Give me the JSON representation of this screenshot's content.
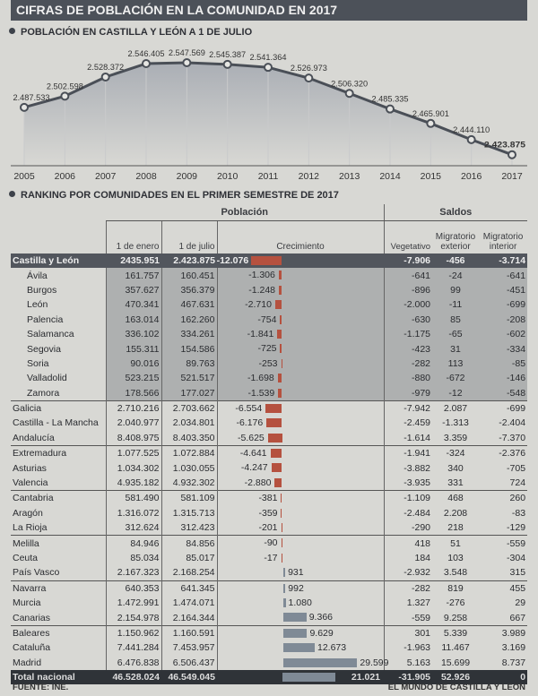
{
  "header": {
    "title": "CIFRAS DE POBLACIÓN EN LA COMUNIDAD EN 2017"
  },
  "section1": {
    "title": "POBLACIÓN EN CASTILLA Y LEÓN A 1 DE JULIO"
  },
  "chart_data": {
    "type": "line",
    "title": "POBLACIÓN EN CASTILLA Y LEÓN A 1 DE JULIO",
    "x": [
      "2005",
      "2006",
      "2007",
      "2008",
      "2009",
      "2010",
      "2011",
      "2012",
      "2013",
      "2014",
      "2015",
      "2016",
      "2017"
    ],
    "values": [
      2487533,
      2502598,
      2528372,
      2546405,
      2547569,
      2545387,
      2541364,
      2526973,
      2506320,
      2485335,
      2465901,
      2444110,
      2423875
    ],
    "labels": [
      "2.487.533",
      "2.502.598",
      "2.528.372",
      "2.546.405",
      "2.547.569",
      "2.545.387",
      "2.541.364",
      "2.526.973",
      "2.506.320",
      "2.485.335",
      "2.465.901",
      "2.444.110",
      "2.423.875"
    ],
    "ylim": [
      2400000,
      2560000
    ],
    "line_color": "#4a4f57",
    "fill_color": "#9fa4ad"
  },
  "section2": {
    "title": "RANKING POR COMUNIDADES EN EL PRIMER SEMESTRE DE 2017"
  },
  "table": {
    "group_poblacion": "Población",
    "group_saldos": "Saldos",
    "columns": [
      "1 de enero",
      "1 de julio",
      "Crecimiento",
      "Vegetativo",
      "Migratorio exterior",
      "Migratorio interior"
    ],
    "neg_color": "#b5513f",
    "pos_color": "#7f8a96",
    "rows": [
      {
        "name": "Castilla y León",
        "enero": "2435.951",
        "julio": "2.423.875",
        "crec": "-12.076",
        "v": -12076,
        "veg": "-7.906",
        "mext": "-456",
        "mint": "-3.714",
        "type": "cyl"
      },
      {
        "name": "Ávila",
        "enero": "161.757",
        "julio": "160.451",
        "crec": "-1.306",
        "v": -1306,
        "veg": "-641",
        "mext": "-24",
        "mint": "-641",
        "type": "prov"
      },
      {
        "name": "Burgos",
        "enero": "357.627",
        "julio": "356.379",
        "crec": "-1.248",
        "v": -1248,
        "veg": "-896",
        "mext": "99",
        "mint": "-451",
        "type": "prov"
      },
      {
        "name": "León",
        "enero": "470.341",
        "julio": "467.631",
        "crec": "-2.710",
        "v": -2710,
        "veg": "-2.000",
        "mext": "-11",
        "mint": "-699",
        "type": "prov"
      },
      {
        "name": "Palencia",
        "enero": "163.014",
        "julio": "162.260",
        "crec": "-754",
        "v": -754,
        "veg": "-630",
        "mext": "85",
        "mint": "-208",
        "type": "prov"
      },
      {
        "name": "Salamanca",
        "enero": "336.102",
        "julio": "334.261",
        "crec": "-1.841",
        "v": -1841,
        "veg": "-1.175",
        "mext": "-65",
        "mint": "-602",
        "type": "prov"
      },
      {
        "name": "Segovia",
        "enero": "155.311",
        "julio": "154.586",
        "crec": "-725",
        "v": -725,
        "veg": "-423",
        "mext": "31",
        "mint": "-334",
        "type": "prov"
      },
      {
        "name": "Soria",
        "enero": "90.016",
        "julio": "89.763",
        "crec": "-253",
        "v": -253,
        "veg": "-282",
        "mext": "113",
        "mint": "-85",
        "type": "prov"
      },
      {
        "name": "Valladolid",
        "enero": "523.215",
        "julio": "521.517",
        "crec": "-1.698",
        "v": -1698,
        "veg": "-880",
        "mext": "-672",
        "mint": "-146",
        "type": "prov"
      },
      {
        "name": "Zamora",
        "enero": "178.566",
        "julio": "177.027",
        "crec": "-1.539",
        "v": -1539,
        "veg": "-979",
        "mext": "-12",
        "mint": "-548",
        "type": "prov"
      },
      {
        "name": "Galicia",
        "enero": "2.710.216",
        "julio": "2.703.662",
        "crec": "-6.554",
        "v": -6554,
        "veg": "-7.942",
        "mext": "2.087",
        "mint": "-699",
        "type": "sep"
      },
      {
        "name": "Castilla - La Mancha",
        "enero": "2.040.977",
        "julio": "2.034.801",
        "crec": "-6.176",
        "v": -6176,
        "veg": "-2.459",
        "mext": "-1.313",
        "mint": "-2.404",
        "type": ""
      },
      {
        "name": "Andalucía",
        "enero": "8.408.975",
        "julio": "8.403.350",
        "crec": "-5.625",
        "v": -5625,
        "veg": "-1.614",
        "mext": "3.359",
        "mint": "-7.370",
        "type": ""
      },
      {
        "name": "Extremadura",
        "enero": "1.077.525",
        "julio": "1.072.884",
        "crec": "-4.641",
        "v": -4641,
        "veg": "-1.941",
        "mext": "-324",
        "mint": "-2.376",
        "type": "sep"
      },
      {
        "name": "Asturias",
        "enero": "1.034.302",
        "julio": "1.030.055",
        "crec": "-4.247",
        "v": -4247,
        "veg": "-3.882",
        "mext": "340",
        "mint": "-705",
        "type": ""
      },
      {
        "name": "Valencia",
        "enero": "4.935.182",
        "julio": "4.932.302",
        "crec": "-2.880",
        "v": -2880,
        "veg": "-3.935",
        "mext": "331",
        "mint": "724",
        "type": ""
      },
      {
        "name": "Cantabria",
        "enero": "581.490",
        "julio": "581.109",
        "crec": "-381",
        "v": -381,
        "veg": "-1.109",
        "mext": "468",
        "mint": "260",
        "type": "sep"
      },
      {
        "name": "Aragón",
        "enero": "1.316.072",
        "julio": "1.315.713",
        "crec": "-359",
        "v": -359,
        "veg": "-2.484",
        "mext": "2.208",
        "mint": "-83",
        "type": ""
      },
      {
        "name": "La Rioja",
        "enero": "312.624",
        "julio": "312.423",
        "crec": "-201",
        "v": -201,
        "veg": "-290",
        "mext": "218",
        "mint": "-129",
        "type": ""
      },
      {
        "name": "Melilla",
        "enero": "84.946",
        "julio": "84.856",
        "crec": "-90",
        "v": -90,
        "veg": "418",
        "mext": "51",
        "mint": "-559",
        "type": "sep"
      },
      {
        "name": "Ceuta",
        "enero": "85.034",
        "julio": "85.017",
        "crec": "-17",
        "v": -17,
        "veg": "184",
        "mext": "103",
        "mint": "-304",
        "type": ""
      },
      {
        "name": "País Vasco",
        "enero": "2.167.323",
        "julio": "2.168.254",
        "crec": "931",
        "v": 931,
        "veg": "-2.932",
        "mext": "3.548",
        "mint": "315",
        "type": ""
      },
      {
        "name": "Navarra",
        "enero": "640.353",
        "julio": "641.345",
        "crec": "992",
        "v": 992,
        "veg": "-282",
        "mext": "819",
        "mint": "455",
        "type": "sep"
      },
      {
        "name": "Murcia",
        "enero": "1.472.991",
        "julio": "1.474.071",
        "crec": "1.080",
        "v": 1080,
        "veg": "1.327",
        "mext": "-276",
        "mint": "29",
        "type": ""
      },
      {
        "name": "Canarias",
        "enero": "2.154.978",
        "julio": "2.164.344",
        "crec": "9.366",
        "v": 9366,
        "veg": "-559",
        "mext": "9.258",
        "mint": "667",
        "type": ""
      },
      {
        "name": "Baleares",
        "enero": "1.150.962",
        "julio": "1.160.591",
        "crec": "9.629",
        "v": 9629,
        "veg": "301",
        "mext": "5.339",
        "mint": "3.989",
        "type": "sep"
      },
      {
        "name": "Cataluña",
        "enero": "7.441.284",
        "julio": "7.453.957",
        "crec": "12.673",
        "v": 12673,
        "veg": "-1.963",
        "mext": "11.467",
        "mint": "3.169",
        "type": ""
      },
      {
        "name": "Madrid",
        "enero": "6.476.838",
        "julio": "6.506.437",
        "crec": "29.599",
        "v": 29599,
        "veg": "5.163",
        "mext": "15.699",
        "mint": "8.737",
        "type": ""
      },
      {
        "name": "Total nacional",
        "enero": "46.528.024",
        "julio": "46.549.045",
        "crec": "21.021",
        "v": 21021,
        "veg": "-31.905",
        "mext": "52.926",
        "mint": "0",
        "type": "tot"
      }
    ]
  },
  "footer": {
    "source": "FUENTE: INE.",
    "credit": "EL MUNDO DE CASTILLA Y LEÓN"
  }
}
